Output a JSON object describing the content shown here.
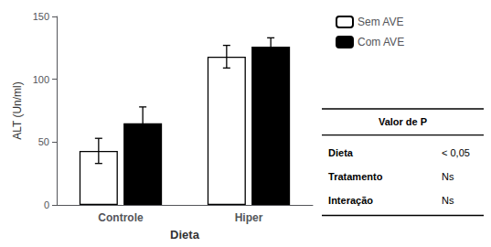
{
  "chart_data": {
    "type": "bar",
    "categories": [
      "Controle",
      "Hiper"
    ],
    "series": [
      {
        "name": "Sem AVE",
        "color": "#ffffff",
        "values": [
          43,
          118
        ],
        "errors": [
          10,
          9
        ]
      },
      {
        "name": "Com AVE",
        "color": "#000000",
        "values": [
          65,
          126
        ],
        "errors": [
          13,
          7
        ]
      }
    ],
    "xlabel": "Dieta",
    "ylabel": "ALT (Un/ml)",
    "ylim": [
      0,
      150
    ],
    "yticks": [
      0,
      50,
      100,
      150
    ],
    "grid": false,
    "legend": "upper right",
    "table": {
      "title": "Valor de P",
      "rows": [
        [
          "Dieta",
          "< 0,05"
        ],
        [
          "Tratamento",
          "Ns"
        ],
        [
          "Interação",
          "Ns"
        ]
      ]
    }
  }
}
